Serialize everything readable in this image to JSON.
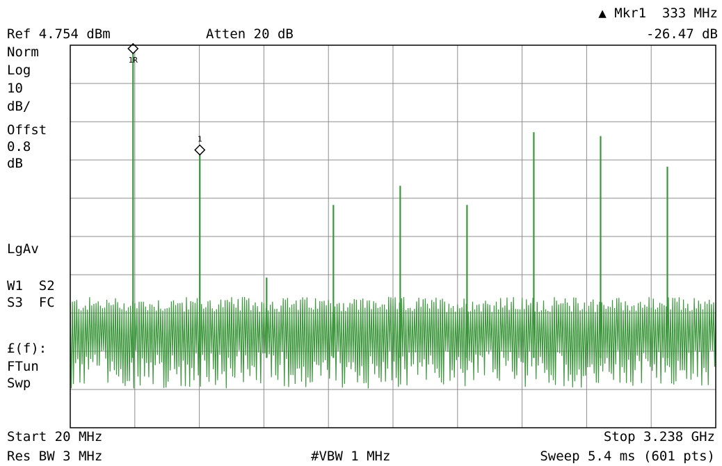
{
  "header": {
    "ref_level": "Ref 4.754 dBm",
    "attenuation": "Atten 20 dB",
    "marker_readout": "▲ Mkr1  333 MHz",
    "marker_delta": "-26.47 dB"
  },
  "left_panel": {
    "lines": [
      "Norm",
      "Log",
      "10",
      "dB/",
      "Offst",
      "0.8",
      "dB"
    ],
    "detector": "LgAv",
    "trace_line1": "W1  S2",
    "trace_line2": "S3  FC",
    "func_line1": "£(f):",
    "func_line2": "FTun",
    "func_line3": "Swp"
  },
  "footer": {
    "start": "Start 20 MHz",
    "stop": "Stop 3.238 GHz",
    "res_bw": "Res BW 3 MHz",
    "vbw": "#VBW 1 MHz",
    "sweep": "Sweep 5.4 ms (601 pts)"
  },
  "markers": {
    "ref_label": "1R",
    "delta_label": "1"
  },
  "colors": {
    "trace": "#3c963c",
    "grid": "#8c8c8c",
    "frame": "#000000",
    "background": "#ffffff"
  },
  "chart_data": {
    "type": "line",
    "title": "",
    "x_unit": "MHz",
    "y_unit": "dBm",
    "xlim": [
      20,
      3238
    ],
    "ylim": [
      -95.246,
      4.754
    ],
    "y_scale": "log 10 dB/div",
    "grid": true,
    "points": 601,
    "noise_floor_dbm": [
      -65,
      -75
    ],
    "peaks": [
      {
        "x": 333,
        "y": 3.5
      },
      {
        "x": 666,
        "y": -23
      },
      {
        "x": 999,
        "y": -56
      },
      {
        "x": 1332,
        "y": -37
      },
      {
        "x": 1665,
        "y": -32
      },
      {
        "x": 1998,
        "y": -37
      },
      {
        "x": 2331,
        "y": -18
      },
      {
        "x": 2664,
        "y": -19
      },
      {
        "x": 2997,
        "y": -27
      }
    ],
    "markers": [
      {
        "label": "1R",
        "x": 333,
        "y": 3.5
      },
      {
        "label": "1",
        "x": 666,
        "y": -23
      }
    ]
  }
}
